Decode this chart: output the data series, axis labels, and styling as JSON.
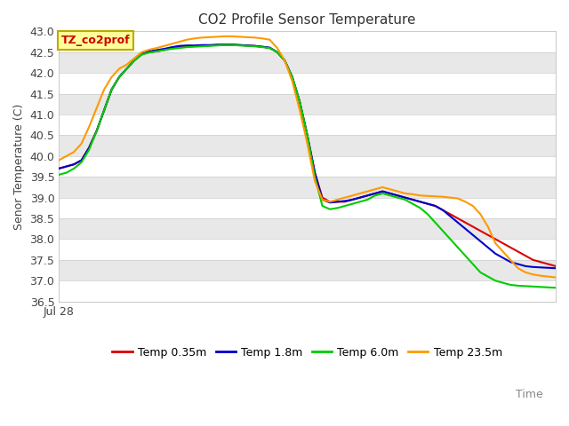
{
  "title": "CO2 Profile Sensor Temperature",
  "ylabel": "Senor Temperature (C)",
  "xlabel": "Time",
  "x_label_left": "Jul 28",
  "annotation_label": "TZ_co2prof",
  "annotation_color": "#cc0000",
  "annotation_bg": "#ffff99",
  "annotation_border": "#bbaa00",
  "colors": {
    "Temp 0.35m": "#dd0000",
    "Temp 1.8m": "#0000cc",
    "Temp 6.0m": "#00cc00",
    "Temp 23.5m": "#ff9900"
  },
  "xlim": [
    0,
    100
  ],
  "ylim": [
    36.5,
    43.0
  ],
  "yticks": [
    36.5,
    37.0,
    37.5,
    38.0,
    38.5,
    39.0,
    39.5,
    40.0,
    40.5,
    41.0,
    41.5,
    42.0,
    42.5,
    43.0
  ],
  "series": {
    "Temp 0.35m": [
      39.7,
      39.75,
      39.8,
      39.9,
      40.2,
      40.6,
      41.1,
      41.6,
      41.9,
      42.1,
      42.3,
      42.45,
      42.5,
      42.52,
      42.55,
      42.6,
      42.62,
      42.65,
      42.65,
      42.65,
      42.66,
      42.67,
      42.68,
      42.68,
      42.67,
      42.66,
      42.65,
      42.63,
      42.6,
      42.5,
      42.3,
      41.9,
      41.3,
      40.5,
      39.6,
      39.0,
      38.9,
      38.9,
      38.9,
      38.95,
      39.0,
      39.05,
      39.1,
      39.15,
      39.1,
      39.05,
      39.0,
      38.95,
      38.9,
      38.85,
      38.8,
      38.7,
      38.6,
      38.5,
      38.4,
      38.3,
      38.2,
      38.1,
      38.0,
      37.9,
      37.8,
      37.7,
      37.6,
      37.5,
      37.45,
      37.4,
      37.35
    ],
    "Temp 1.8m": [
      39.7,
      39.75,
      39.8,
      39.9,
      40.2,
      40.6,
      41.1,
      41.6,
      41.9,
      42.1,
      42.3,
      42.45,
      42.52,
      42.55,
      42.58,
      42.62,
      42.65,
      42.66,
      42.66,
      42.67,
      42.67,
      42.68,
      42.68,
      42.68,
      42.67,
      42.66,
      42.65,
      42.63,
      42.61,
      42.5,
      42.3,
      41.9,
      41.3,
      40.5,
      39.6,
      38.95,
      38.88,
      38.9,
      38.92,
      38.95,
      39.0,
      39.05,
      39.1,
      39.15,
      39.1,
      39.05,
      39.0,
      38.95,
      38.9,
      38.85,
      38.8,
      38.7,
      38.55,
      38.4,
      38.25,
      38.1,
      37.95,
      37.8,
      37.65,
      37.55,
      37.45,
      37.4,
      37.35,
      37.33,
      37.32,
      37.31,
      37.3
    ],
    "Temp 6.0m": [
      39.55,
      39.6,
      39.7,
      39.85,
      40.15,
      40.6,
      41.1,
      41.6,
      41.9,
      42.1,
      42.3,
      42.44,
      42.49,
      42.52,
      42.55,
      42.58,
      42.6,
      42.62,
      42.63,
      42.64,
      42.65,
      42.66,
      42.67,
      42.67,
      42.66,
      42.65,
      42.64,
      42.62,
      42.6,
      42.5,
      42.3,
      41.9,
      41.3,
      40.5,
      39.5,
      38.8,
      38.72,
      38.75,
      38.8,
      38.85,
      38.9,
      38.95,
      39.05,
      39.1,
      39.05,
      39.0,
      38.95,
      38.85,
      38.75,
      38.6,
      38.4,
      38.2,
      38.0,
      37.8,
      37.6,
      37.4,
      37.2,
      37.1,
      37.0,
      36.95,
      36.9,
      36.88,
      36.87,
      36.86,
      36.85,
      36.84,
      36.83
    ],
    "Temp 23.5m": [
      39.9,
      40.0,
      40.1,
      40.3,
      40.7,
      41.15,
      41.6,
      41.9,
      42.1,
      42.2,
      42.35,
      42.5,
      42.56,
      42.6,
      42.65,
      42.7,
      42.75,
      42.8,
      42.83,
      42.85,
      42.86,
      42.87,
      42.88,
      42.88,
      42.87,
      42.86,
      42.85,
      42.83,
      42.8,
      42.6,
      42.3,
      41.8,
      41.1,
      40.3,
      39.4,
      38.95,
      38.9,
      38.95,
      39.0,
      39.05,
      39.1,
      39.15,
      39.2,
      39.25,
      39.2,
      39.15,
      39.1,
      39.08,
      39.05,
      39.04,
      39.03,
      39.02,
      39.0,
      38.98,
      38.9,
      38.8,
      38.6,
      38.3,
      37.9,
      37.7,
      37.5,
      37.3,
      37.2,
      37.15,
      37.12,
      37.1,
      37.08
    ]
  },
  "fig_bg": "#ffffff",
  "plot_bg": "#e8e8e8",
  "band_color": "#e0e0e0",
  "white_band": "#f0f0f0",
  "title_fontsize": 11,
  "axis_fontsize": 9,
  "legend_fontsize": 9
}
